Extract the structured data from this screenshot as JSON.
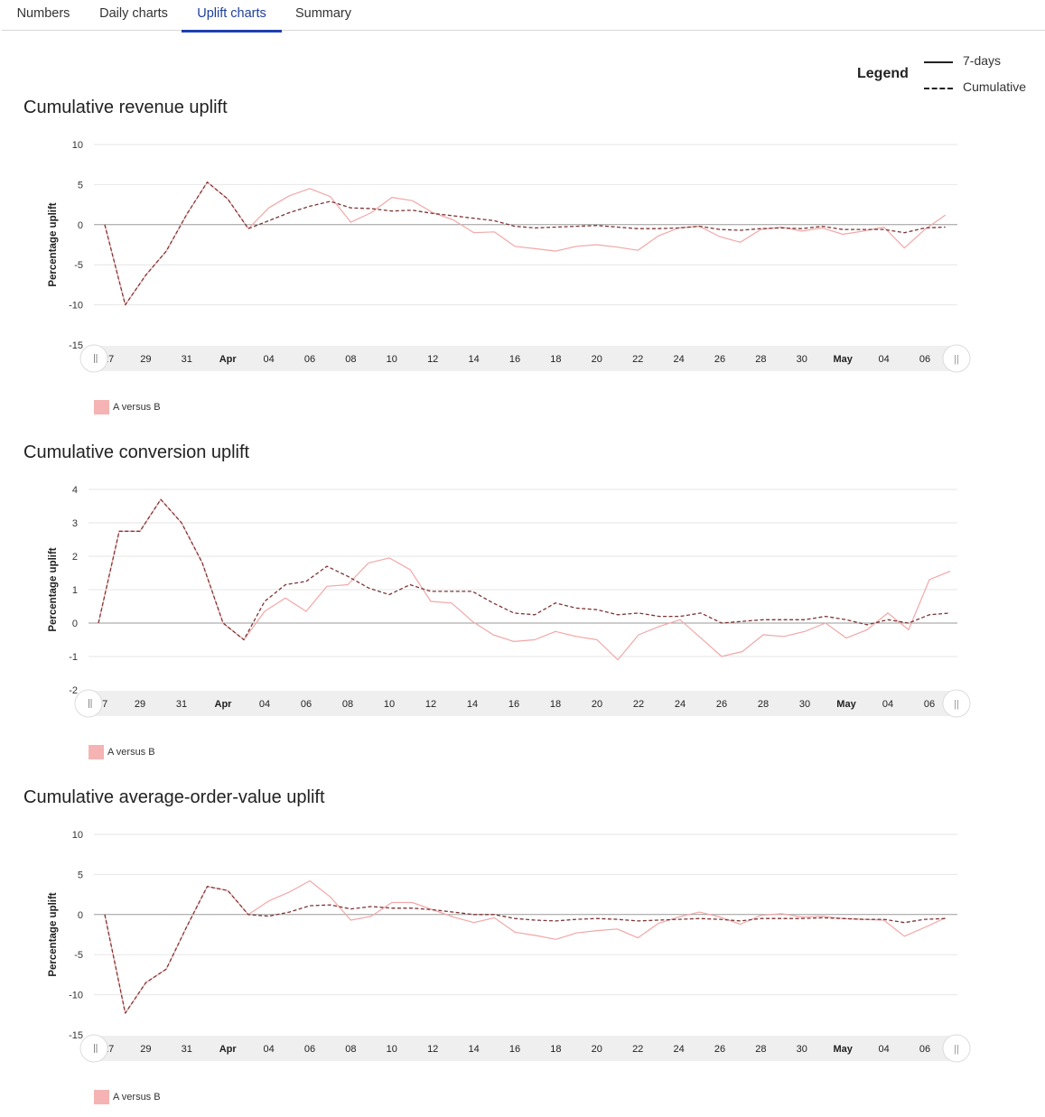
{
  "tabs": [
    {
      "label": "Numbers",
      "active": false
    },
    {
      "label": "Daily charts",
      "active": false
    },
    {
      "label": "Uplift charts",
      "active": true
    },
    {
      "label": "Summary",
      "active": false
    }
  ],
  "legend": {
    "title": "Legend",
    "items": [
      {
        "label": "7-days",
        "style": "solid"
      },
      {
        "label": "Cumulative",
        "style": "dashed"
      }
    ]
  },
  "colors": {
    "seven_day_line": "#f2a7a7",
    "cumulative_line": "#7d3535",
    "series_swatch": "#f6b3b3",
    "active_tab": "#1f3fb0"
  },
  "navigator": {
    "left_handle": "||",
    "right_handle": "||"
  },
  "chart_data": [
    {
      "type": "line",
      "title": "Cumulative revenue uplift",
      "ylabel": "Percentage uplift",
      "xlabel": "",
      "ylim": [
        -15,
        10
      ],
      "yticks": [
        "10",
        "5",
        "0",
        "-5",
        "-10",
        "-15"
      ],
      "grid": true,
      "x_tick_labels": [
        "27",
        "29",
        "31",
        "Apr",
        "04",
        "06",
        "08",
        "10",
        "12",
        "14",
        "16",
        "18",
        "20",
        "22",
        "24",
        "26",
        "28",
        "30",
        "May",
        "04",
        "06"
      ],
      "x_tick_bold": [
        "Apr",
        "May"
      ],
      "x_start_day": "Mar 27",
      "series_legend": "A versus B",
      "series": [
        {
          "style": "7-days",
          "values": [
            0,
            -10,
            -6.3,
            -3.3,
            1.3,
            5.3,
            3.2,
            -0.5,
            2.1,
            3.6,
            4.5,
            3.5,
            0.3,
            1.5,
            3.4,
            3.0,
            1.5,
            0.6,
            -1.0,
            -0.9,
            -2.7,
            -3.0,
            -3.3,
            -2.7,
            -2.5,
            -2.8,
            -3.2,
            -1.4,
            -0.4,
            -0.2,
            -1.5,
            -2.2,
            -0.6,
            -0.3,
            -0.8,
            -0.4,
            -1.2,
            -0.8,
            -0.3,
            -2.9,
            -0.6,
            1.2
          ]
        },
        {
          "style": "Cumulative",
          "values": [
            0,
            -10,
            -6.3,
            -3.3,
            1.3,
            5.3,
            3.2,
            -0.5,
            0.5,
            1.5,
            2.3,
            2.9,
            2.1,
            2.0,
            1.7,
            1.8,
            1.4,
            1.1,
            0.8,
            0.5,
            -0.2,
            -0.4,
            -0.3,
            -0.2,
            -0.1,
            -0.3,
            -0.5,
            -0.5,
            -0.4,
            -0.2,
            -0.6,
            -0.7,
            -0.5,
            -0.4,
            -0.5,
            -0.2,
            -0.6,
            -0.6,
            -0.6,
            -1.0,
            -0.4,
            -0.3
          ]
        }
      ]
    },
    {
      "type": "line",
      "title": "Cumulative conversion uplift",
      "ylabel": "Percentage uplift",
      "xlabel": "",
      "ylim": [
        -2,
        4
      ],
      "yticks": [
        "4",
        "3",
        "2",
        "1",
        "0",
        "-1",
        "-2"
      ],
      "grid": true,
      "x_tick_labels": [
        "27",
        "29",
        "31",
        "Apr",
        "04",
        "06",
        "08",
        "10",
        "12",
        "14",
        "16",
        "18",
        "20",
        "22",
        "24",
        "26",
        "28",
        "30",
        "May",
        "04",
        "06"
      ],
      "x_tick_bold": [
        "Apr",
        "May"
      ],
      "x_start_day": "Mar 27",
      "series_legend": "A versus B",
      "series": [
        {
          "style": "7-days",
          "values": [
            0,
            2.75,
            2.75,
            3.7,
            3.0,
            1.8,
            0,
            -0.5,
            0.35,
            0.75,
            0.35,
            1.1,
            1.15,
            1.8,
            1.95,
            1.6,
            0.65,
            0.6,
            0.05,
            -0.35,
            -0.55,
            -0.5,
            -0.25,
            -0.4,
            -0.5,
            -1.1,
            -0.35,
            -0.1,
            0.1,
            -0.45,
            -1.0,
            -0.85,
            -0.35,
            -0.4,
            -0.25,
            0.0,
            -0.45,
            -0.2,
            0.3,
            -0.2,
            1.3,
            1.55
          ]
        },
        {
          "style": "Cumulative",
          "values": [
            0,
            2.75,
            2.75,
            3.7,
            3.0,
            1.8,
            0,
            -0.5,
            0.65,
            1.15,
            1.25,
            1.7,
            1.4,
            1.05,
            0.85,
            1.15,
            0.95,
            0.95,
            0.95,
            0.6,
            0.3,
            0.25,
            0.6,
            0.45,
            0.4,
            0.25,
            0.3,
            0.2,
            0.2,
            0.3,
            0.0,
            0.05,
            0.1,
            0.1,
            0.1,
            0.2,
            0.1,
            -0.05,
            0.1,
            0.0,
            0.25,
            0.3
          ]
        }
      ]
    },
    {
      "type": "line",
      "title": "Cumulative average-order-value uplift",
      "ylabel": "Percentage uplift",
      "xlabel": "",
      "ylim": [
        -15,
        10
      ],
      "yticks": [
        "10",
        "5",
        "0",
        "-5",
        "-10",
        "-15"
      ],
      "grid": true,
      "x_tick_labels": [
        "27",
        "29",
        "31",
        "Apr",
        "04",
        "06",
        "08",
        "10",
        "12",
        "14",
        "16",
        "18",
        "20",
        "22",
        "24",
        "26",
        "28",
        "30",
        "May",
        "04",
        "06"
      ],
      "x_tick_bold": [
        "Apr",
        "May"
      ],
      "x_start_day": "Mar 27",
      "series_legend": "A versus B",
      "series": [
        {
          "style": "7-days",
          "values": [
            0,
            -12.3,
            -8.5,
            -6.8,
            -1.5,
            3.5,
            3.0,
            0.0,
            1.7,
            2.8,
            4.2,
            2.2,
            -0.7,
            -0.2,
            1.5,
            1.5,
            0.6,
            -0.3,
            -1.0,
            -0.4,
            -2.2,
            -2.6,
            -3.1,
            -2.3,
            -2.0,
            -1.8,
            -2.9,
            -1.1,
            -0.3,
            0.3,
            -0.3,
            -1.2,
            -0.1,
            0.1,
            -0.3,
            -0.2,
            -0.5,
            -0.6,
            -0.7,
            -2.7,
            -1.6,
            -0.4
          ]
        },
        {
          "style": "Cumulative",
          "values": [
            0,
            -12.3,
            -8.5,
            -6.8,
            -1.5,
            3.5,
            3.0,
            0.0,
            -0.2,
            0.3,
            1.1,
            1.2,
            0.7,
            1.0,
            0.8,
            0.8,
            0.6,
            0.3,
            0.0,
            0.0,
            -0.5,
            -0.7,
            -0.8,
            -0.6,
            -0.5,
            -0.6,
            -0.8,
            -0.7,
            -0.6,
            -0.5,
            -0.6,
            -0.8,
            -0.5,
            -0.5,
            -0.5,
            -0.4,
            -0.5,
            -0.6,
            -0.6,
            -1.0,
            -0.6,
            -0.5
          ]
        }
      ]
    }
  ]
}
